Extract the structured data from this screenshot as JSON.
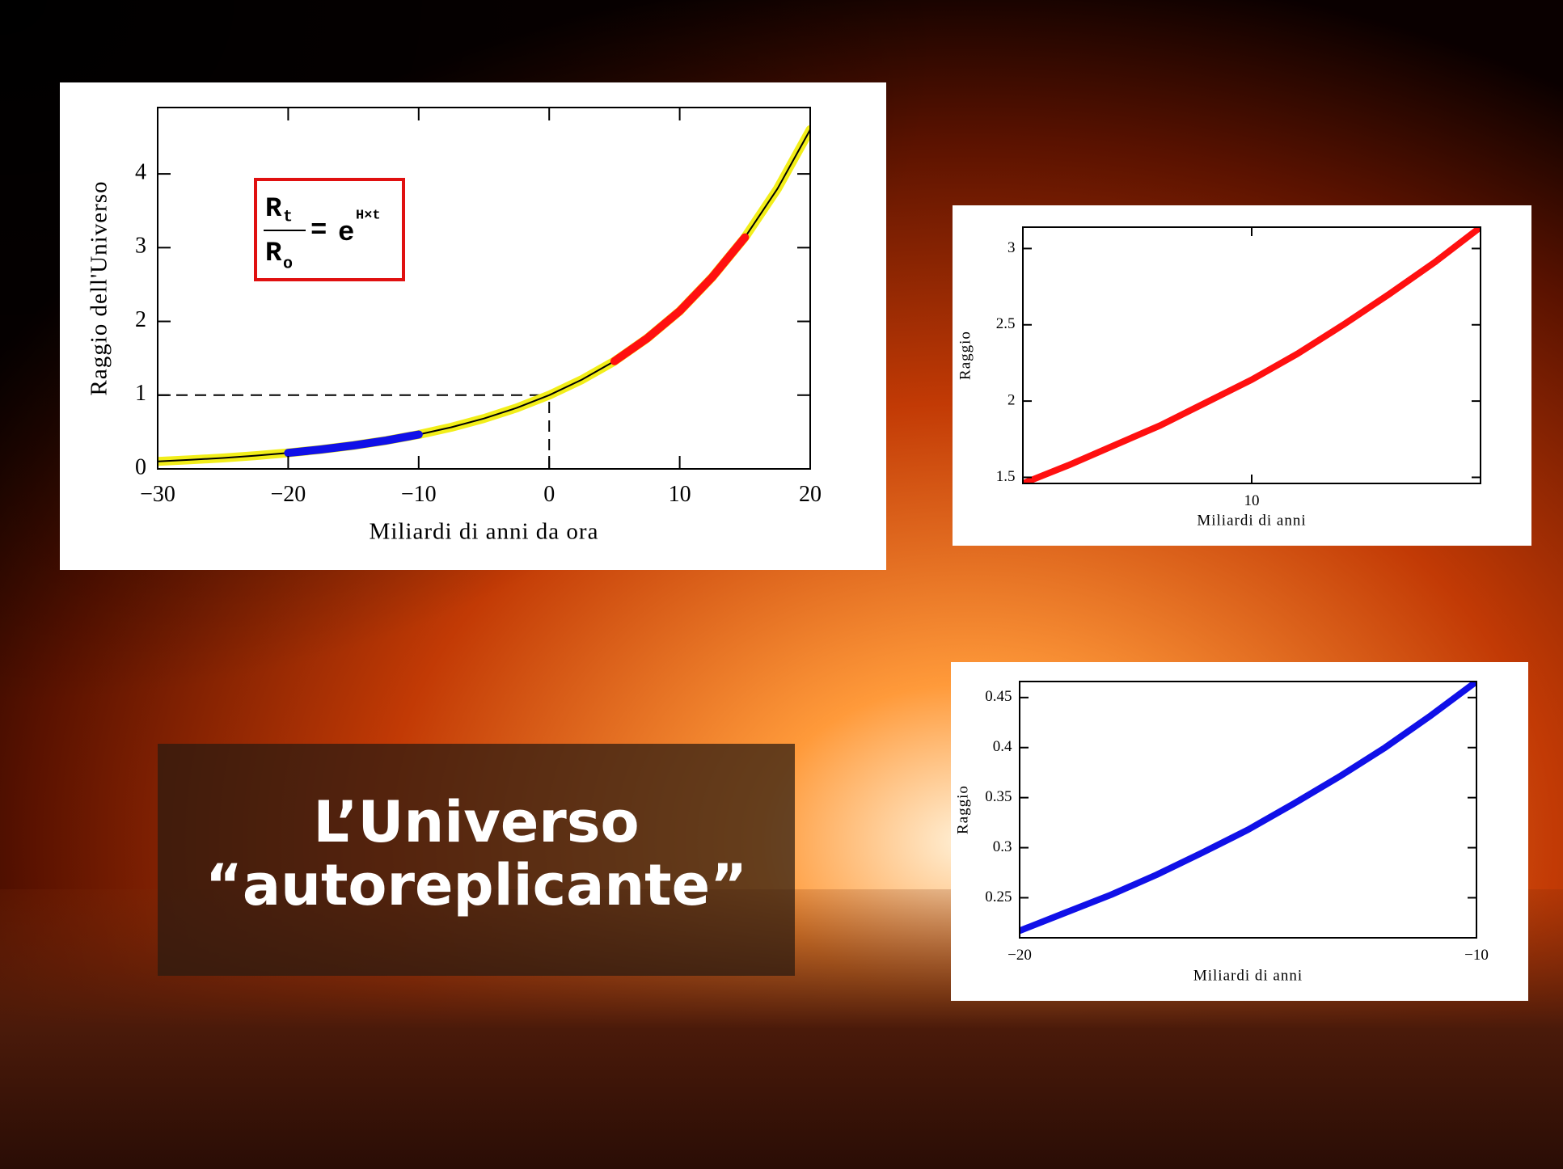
{
  "title": {
    "lines": [
      "L’Universo",
      "“autoreplicante”"
    ]
  },
  "chart_data": [
    {
      "type": "line",
      "xlabel": "Miliardi di anni da ora",
      "ylabel": "Raggio dell'Universo",
      "x": [
        -30,
        -27.5,
        -25,
        -22.5,
        -20,
        -17.5,
        -15,
        -12.5,
        -10,
        -7.5,
        -5,
        -2.5,
        0,
        2.5,
        5,
        7.5,
        10,
        12.5,
        15,
        17.5,
        20
      ],
      "series": [
        {
          "color": "#f2ee1a",
          "values": [
            0.101,
            0.123,
            0.148,
            0.18,
            0.217,
            0.263,
            0.318,
            0.385,
            0.466,
            0.564,
            0.683,
            0.826,
            1,
            1.21,
            1.46,
            1.77,
            2.14,
            2.6,
            3.14,
            3.8,
            4.6
          ]
        },
        {
          "color": "#000000",
          "values": [
            0.101,
            0.123,
            0.148,
            0.18,
            0.217,
            0.263,
            0.318,
            0.385,
            0.466,
            0.564,
            0.683,
            0.826,
            1,
            1.21,
            1.46,
            1.77,
            2.14,
            2.6,
            3.14,
            3.8,
            4.6
          ]
        },
        {
          "color": "#ff1010",
          "values": [
            null,
            null,
            null,
            null,
            null,
            null,
            null,
            null,
            null,
            null,
            null,
            null,
            null,
            null,
            1.46,
            1.77,
            2.14,
            2.6,
            3.14,
            null,
            null
          ]
        },
        {
          "color": "#1010e8",
          "values": [
            null,
            null,
            null,
            null,
            0.217,
            0.263,
            0.318,
            0.385,
            0.466,
            null,
            null,
            null,
            null,
            null,
            null,
            null,
            null,
            null,
            null,
            null,
            null
          ]
        }
      ],
      "xlim": [
        -30,
        20
      ],
      "xticks": [
        {
          "value": -30,
          "label": "−30"
        },
        {
          "value": -20,
          "label": "−20"
        },
        {
          "value": -10,
          "label": "−10"
        },
        0,
        10,
        20
      ],
      "ylim": [
        0,
        4.9
      ],
      "yticks": [
        0,
        1,
        2,
        3,
        4
      ],
      "dashed_lines": {
        "x": 0,
        "y": 1
      },
      "annotation": {
        "num": "R",
        "num_sub": "t",
        "den": "R",
        "den_sub": "o",
        "eq": "=",
        "base": "e",
        "exp": "H×t"
      }
    },
    {
      "type": "line",
      "xlabel": "Miliardi di anni",
      "ylabel": "Raggio",
      "x": [
        5,
        6,
        7,
        8,
        9,
        10,
        11,
        12,
        13,
        14,
        15
      ],
      "series": [
        {
          "color": "#ff1010",
          "values": [
            1.46,
            1.58,
            1.71,
            1.84,
            1.99,
            2.14,
            2.31,
            2.5,
            2.7,
            2.91,
            3.14
          ]
        }
      ],
      "xlim": [
        5,
        15
      ],
      "xticks": [
        10
      ],
      "ylim": [
        1.46,
        3.14
      ],
      "yticks": [
        1.5,
        2,
        2.5,
        3
      ]
    },
    {
      "type": "line",
      "xlabel": "Miliardi di anni",
      "ylabel": "Raggio",
      "x": [
        -20,
        -19,
        -18,
        -17,
        -16,
        -15,
        -14,
        -13,
        -12,
        -11,
        -10
      ],
      "series": [
        {
          "color": "#1010e8",
          "values": [
            0.217,
            0.235,
            0.253,
            0.273,
            0.295,
            0.318,
            0.344,
            0.371,
            0.4,
            0.432,
            0.466
          ]
        }
      ],
      "xlim": [
        -20,
        -10
      ],
      "xticks": [
        {
          "value": -20,
          "label": "−20"
        },
        {
          "value": -10,
          "label": "−10"
        }
      ],
      "ylim": [
        0.21,
        0.466
      ],
      "yticks": [
        0.25,
        0.3,
        0.35,
        0.4,
        0.45
      ]
    }
  ]
}
